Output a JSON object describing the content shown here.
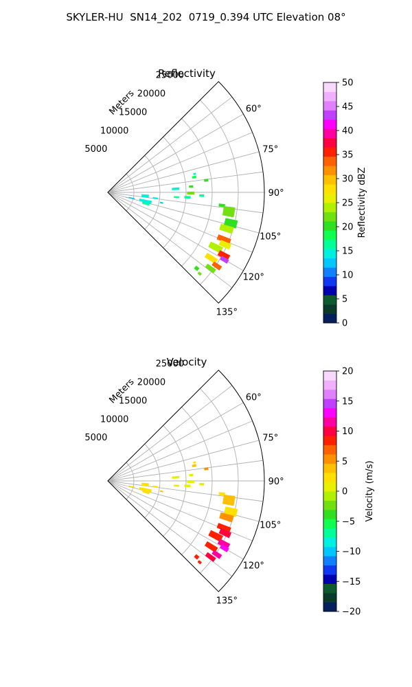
{
  "figure": {
    "suptitle": "SKYLER-HU  SN14_202  0719_0.394 UTC Elevation 08°"
  },
  "chart_data": [
    {
      "type": "heatmap",
      "projection": "polar-sector",
      "title": "Reflectivity",
      "range_label": "Meters",
      "range_ticks": [
        5000,
        10000,
        15000,
        20000,
        25000
      ],
      "range_tick_labels": [
        "5000",
        "10000",
        "15000",
        "20000",
        "25000"
      ],
      "rmax": 30000,
      "theta_range_deg": [
        45,
        135
      ],
      "theta_ticks": [
        60,
        75,
        90,
        105,
        120,
        135
      ],
      "theta_tick_labels": [
        "60°",
        "75°",
        "90°",
        "105°",
        "120°",
        "135°"
      ],
      "grid": true,
      "colorbar": {
        "label": "Reflectivity dBZ",
        "min": 0,
        "max": 50,
        "ticks": [
          0,
          5,
          10,
          15,
          20,
          25,
          30,
          35,
          40,
          45,
          50
        ],
        "tick_labels": [
          "0",
          "5",
          "10",
          "15",
          "20",
          "25",
          "30",
          "35",
          "40",
          "45",
          "50"
        ],
        "colors": [
          "#06205e",
          "#0a3a2a",
          "#0e5a30",
          "#0000b0",
          "#1038f0",
          "#1080ff",
          "#00c8ff",
          "#00f0e0",
          "#00ff9a",
          "#10ff50",
          "#30e020",
          "#70e010",
          "#b0f000",
          "#e8f000",
          "#ffe000",
          "#ffc000",
          "#ff9000",
          "#ff6000",
          "#ff2000",
          "#ff0040",
          "#ff00a0",
          "#ff00ff",
          "#c040ff",
          "#e080ff",
          "#f0b0ff",
          "#f8d8ff"
        ]
      },
      "echoes": [
        {
          "theta": 95.5,
          "r": 7200,
          "dr": 1400,
          "dth": 4.5,
          "value": 15
        },
        {
          "theta": 97,
          "r": 9200,
          "dr": 1000,
          "dth": 2.0,
          "value": 14
        },
        {
          "theta": 101,
          "r": 10500,
          "dr": 600,
          "dth": 1.5,
          "value": 13
        },
        {
          "theta": 103,
          "r": 7400,
          "dr": 2400,
          "dth": 4.0,
          "value": 15
        },
        {
          "theta": 106.5,
          "r": 7600,
          "dr": 1400,
          "dth": 3.0,
          "value": 16
        },
        {
          "theta": 103.5,
          "r": 4700,
          "dr": 1200,
          "dth": 2.5,
          "value": 13
        },
        {
          "theta": 105,
          "r": 3800,
          "dr": 700,
          "dth": 1.5,
          "value": 12
        },
        {
          "theta": 87,
          "r": 13000,
          "dr": 1400,
          "dth": 2.0,
          "value": 15
        },
        {
          "theta": 86,
          "r": 16000,
          "dr": 800,
          "dth": 1.5,
          "value": 20
        },
        {
          "theta": 90.5,
          "r": 15900,
          "dr": 1400,
          "dth": 2.0,
          "value": 22
        },
        {
          "theta": 93.5,
          "r": 15300,
          "dr": 1200,
          "dth": 1.8,
          "value": 16
        },
        {
          "theta": 80,
          "r": 16800,
          "dr": 800,
          "dth": 1.5,
          "value": 18
        },
        {
          "theta": 83,
          "r": 19000,
          "dr": 800,
          "dth": 1.5,
          "value": 20
        },
        {
          "theta": 78,
          "r": 17000,
          "dr": 500,
          "dth": 1.2,
          "value": 15
        },
        {
          "theta": 96.5,
          "r": 22000,
          "dr": 1200,
          "dth": 1.5,
          "value": 21
        },
        {
          "theta": 94,
          "r": 13200,
          "dr": 1000,
          "dth": 1.5,
          "value": 16
        },
        {
          "theta": 92,
          "r": 18000,
          "dr": 900,
          "dth": 1.5,
          "value": 17
        },
        {
          "theta": 99,
          "r": 23500,
          "dr": 2200,
          "dth": 4.5,
          "value": 22
        },
        {
          "theta": 104,
          "r": 24300,
          "dr": 2400,
          "dth": 3.5,
          "value": 21
        },
        {
          "theta": 107,
          "r": 23800,
          "dr": 2600,
          "dth": 3.0,
          "value": 24
        },
        {
          "theta": 112,
          "r": 24000,
          "dr": 2600,
          "dth": 2.5,
          "value": 33
        },
        {
          "theta": 114,
          "r": 24600,
          "dr": 2200,
          "dth": 2.5,
          "value": 26
        },
        {
          "theta": 117,
          "r": 23200,
          "dr": 2600,
          "dth": 3.0,
          "value": 24
        },
        {
          "theta": 118.5,
          "r": 25300,
          "dr": 2200,
          "dth": 2.5,
          "value": 35
        },
        {
          "theta": 120,
          "r": 25800,
          "dr": 1600,
          "dth": 1.8,
          "value": 43
        },
        {
          "theta": 122.5,
          "r": 23500,
          "dr": 2400,
          "dth": 2.5,
          "value": 28
        },
        {
          "theta": 124,
          "r": 25200,
          "dr": 1800,
          "dth": 2.0,
          "value": 34
        },
        {
          "theta": 126.5,
          "r": 24500,
          "dr": 2000,
          "dth": 2.0,
          "value": 22
        },
        {
          "theta": 130.5,
          "r": 22400,
          "dr": 800,
          "dth": 1.8,
          "value": 20
        },
        {
          "theta": 131.5,
          "r": 23500,
          "dr": 700,
          "dth": 1.2,
          "value": 22
        }
      ]
    },
    {
      "type": "heatmap",
      "projection": "polar-sector",
      "title": "Velocity",
      "range_label": "Meters",
      "range_ticks": [
        5000,
        10000,
        15000,
        20000,
        25000
      ],
      "range_tick_labels": [
        "5000",
        "10000",
        "15000",
        "20000",
        "25000"
      ],
      "rmax": 30000,
      "theta_range_deg": [
        45,
        135
      ],
      "theta_ticks": [
        60,
        75,
        90,
        105,
        120,
        135
      ],
      "theta_tick_labels": [
        "60°",
        "75°",
        "90°",
        "105°",
        "120°",
        "135°"
      ],
      "grid": true,
      "colorbar": {
        "label": "Velocity (m/s)",
        "min": -20,
        "max": 20,
        "ticks": [
          -20,
          -15,
          -10,
          -5,
          0,
          5,
          10,
          15,
          20
        ],
        "tick_labels": [
          "−20",
          "−15",
          "−10",
          "−5",
          "0",
          "5",
          "10",
          "15",
          "20"
        ],
        "colors": [
          "#06205e",
          "#0a3a2a",
          "#0e5a30",
          "#0000b0",
          "#1038f0",
          "#1080ff",
          "#00c8ff",
          "#00f0e0",
          "#00ff9a",
          "#10ff50",
          "#30e020",
          "#70e010",
          "#b0f000",
          "#e8f000",
          "#ffe000",
          "#ffc000",
          "#ff9000",
          "#ff6000",
          "#ff2000",
          "#ff0040",
          "#ff00a0",
          "#ff00ff",
          "#c040ff",
          "#e080ff",
          "#f0b0ff",
          "#f8d8ff"
        ]
      },
      "echoes": [
        {
          "theta": 95.5,
          "r": 7200,
          "dr": 1400,
          "dth": 4.5,
          "value": 2
        },
        {
          "theta": 97,
          "r": 9200,
          "dr": 1000,
          "dth": 2.0,
          "value": 3
        },
        {
          "theta": 101,
          "r": 10500,
          "dr": 600,
          "dth": 1.5,
          "value": 4
        },
        {
          "theta": 103,
          "r": 7400,
          "dr": 2400,
          "dth": 4.0,
          "value": 3
        },
        {
          "theta": 106.5,
          "r": 7600,
          "dr": 1400,
          "dth": 3.0,
          "value": 2
        },
        {
          "theta": 103.5,
          "r": 4700,
          "dr": 1200,
          "dth": 2.5,
          "value": 2
        },
        {
          "theta": 105,
          "r": 3800,
          "dr": 700,
          "dth": 1.5,
          "value": 1
        },
        {
          "theta": 87,
          "r": 13000,
          "dr": 1400,
          "dth": 2.0,
          "value": 1
        },
        {
          "theta": 86,
          "r": 16000,
          "dr": 800,
          "dth": 1.5,
          "value": 1
        },
        {
          "theta": 90.5,
          "r": 15900,
          "dr": 1400,
          "dth": 2.0,
          "value": 0
        },
        {
          "theta": 93.5,
          "r": 15300,
          "dr": 1200,
          "dth": 1.8,
          "value": 1
        },
        {
          "theta": 80,
          "r": 16800,
          "dr": 800,
          "dth": 1.5,
          "value": 4
        },
        {
          "theta": 83,
          "r": 19000,
          "dr": 800,
          "dth": 1.5,
          "value": 5
        },
        {
          "theta": 78,
          "r": 17000,
          "dr": 500,
          "dth": 1.2,
          "value": 3
        },
        {
          "theta": 96.5,
          "r": 22000,
          "dr": 1200,
          "dth": 1.5,
          "value": 2
        },
        {
          "theta": 94,
          "r": 13200,
          "dr": 1000,
          "dth": 1.5,
          "value": 2
        },
        {
          "theta": 92,
          "r": 18000,
          "dr": 900,
          "dth": 1.5,
          "value": 1
        },
        {
          "theta": 99,
          "r": 23500,
          "dr": 2200,
          "dth": 4.5,
          "value": 4
        },
        {
          "theta": 104,
          "r": 24300,
          "dr": 2400,
          "dth": 3.5,
          "value": 2
        },
        {
          "theta": 107,
          "r": 23800,
          "dr": 2600,
          "dth": 3.0,
          "value": 5
        },
        {
          "theta": 112,
          "r": 24000,
          "dr": 2600,
          "dth": 2.5,
          "value": 8
        },
        {
          "theta": 114,
          "r": 24600,
          "dr": 2200,
          "dth": 2.5,
          "value": 10
        },
        {
          "theta": 117,
          "r": 23200,
          "dr": 2600,
          "dth": 3.0,
          "value": 9
        },
        {
          "theta": 118.5,
          "r": 25300,
          "dr": 2200,
          "dth": 2.5,
          "value": 11
        },
        {
          "theta": 120,
          "r": 25800,
          "dr": 1600,
          "dth": 1.8,
          "value": 13
        },
        {
          "theta": 122.5,
          "r": 23500,
          "dr": 2400,
          "dth": 2.5,
          "value": 9
        },
        {
          "theta": 124,
          "r": 25200,
          "dr": 1800,
          "dth": 2.0,
          "value": 12
        },
        {
          "theta": 126.5,
          "r": 24500,
          "dr": 2000,
          "dth": 2.0,
          "value": 10
        },
        {
          "theta": 130.5,
          "r": 22400,
          "dr": 800,
          "dth": 1.8,
          "value": 8
        },
        {
          "theta": 131.5,
          "r": 23500,
          "dr": 700,
          "dth": 1.2,
          "value": 9
        }
      ]
    }
  ]
}
